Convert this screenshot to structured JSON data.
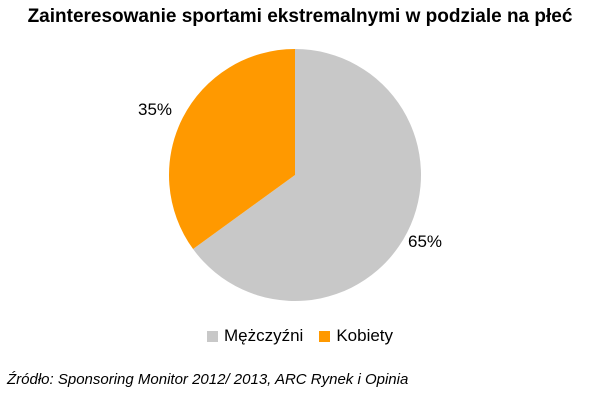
{
  "chart_data": {
    "type": "pie",
    "title": "Zainteresowanie sportami ekstremalnymi w podziale na płeć",
    "categories": [
      "Mężczyźni",
      "Kobiety"
    ],
    "values": [
      65,
      35
    ],
    "value_labels": [
      "65%",
      "35%"
    ],
    "colors": [
      "#c8c8c8",
      "#ff9900"
    ],
    "legend": {
      "placement": "bottom",
      "entries": [
        "Mężczyźni",
        "Kobiety"
      ]
    }
  },
  "source": "Źródło: Sponsoring Monitor 2012/ 2013, ARC Rynek i Opinia"
}
